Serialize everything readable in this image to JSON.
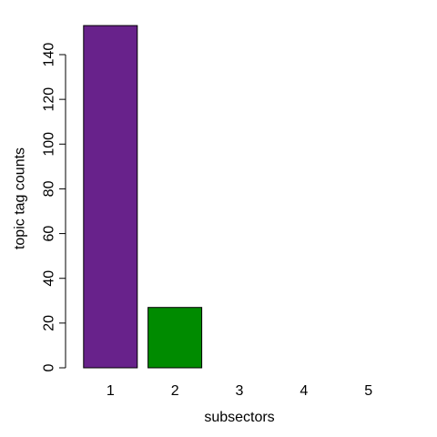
{
  "chart_data": {
    "type": "bar",
    "title": "",
    "xlabel": "subsectors",
    "ylabel": "topic tag counts",
    "categories": [
      "1",
      "2",
      "3",
      "4",
      "5"
    ],
    "values": [
      153,
      27,
      0,
      0,
      0
    ],
    "bar_colors": [
      "#68228B",
      "#008B00",
      "#000000",
      "#000000",
      "#000000"
    ],
    "y_ticks": [
      0,
      20,
      40,
      60,
      80,
      100,
      120,
      140
    ],
    "ylim": [
      0,
      155
    ],
    "grid": false,
    "legend": "none"
  }
}
